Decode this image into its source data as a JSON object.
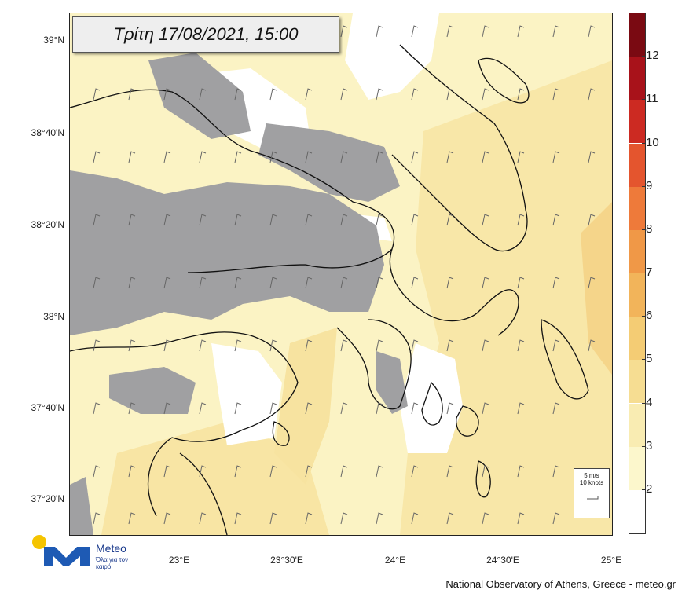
{
  "title": "Τρίτη 17/08/2021, 15:00",
  "lat_labels": [
    "39°N",
    "38°40'N",
    "38°20'N",
    "38°N",
    "37°40'N",
    "37°20'N"
  ],
  "lon_labels": [
    "23°E",
    "23°30'E",
    "24°E",
    "24°30'E",
    "25°E"
  ],
  "colorbar": {
    "labels": [
      "2",
      "3",
      "4",
      "5",
      "6",
      "7",
      "8",
      "9",
      "10",
      "11",
      "12"
    ],
    "colors": [
      "#ffffff",
      "#fcf7cc",
      "#f9ecb2",
      "#f6dd92",
      "#f4cc74",
      "#f2b45a",
      "#f09847",
      "#ee7a3a",
      "#e4552e",
      "#cc2a22",
      "#a8121a",
      "#7a0a12"
    ]
  },
  "legend": {
    "line1": "5 m/s",
    "line2": "10 knots"
  },
  "logo": {
    "name": "Meteo",
    "tagline": "Όλα για τον καιρό"
  },
  "credit": "National Observatory of Athens, Greece - meteo.gr",
  "colors": {
    "calm": "#ffffff",
    "gray_zone": "#a0a0a2",
    "base": "#fbf3c4",
    "coast": "#111111"
  }
}
